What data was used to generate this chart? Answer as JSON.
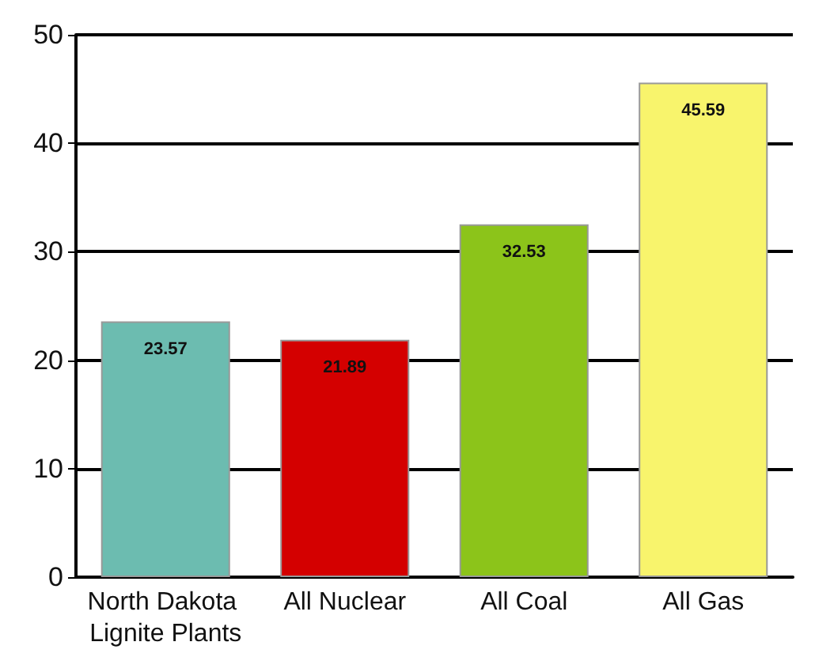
{
  "chart_data": {
    "type": "bar",
    "categories": [
      "North Dakota Lignite Plants",
      "All Nuclear",
      "All Coal",
      "All Gas"
    ],
    "values": [
      23.57,
      21.89,
      32.53,
      45.59
    ],
    "colors": [
      "#6cbcb0",
      "#d40000",
      "#8cc41a",
      "#f8f46c"
    ],
    "ylim": [
      0,
      50
    ],
    "yticks": [
      0,
      10,
      20,
      30,
      40,
      50
    ],
    "grid": "y",
    "data_labels": true
  }
}
